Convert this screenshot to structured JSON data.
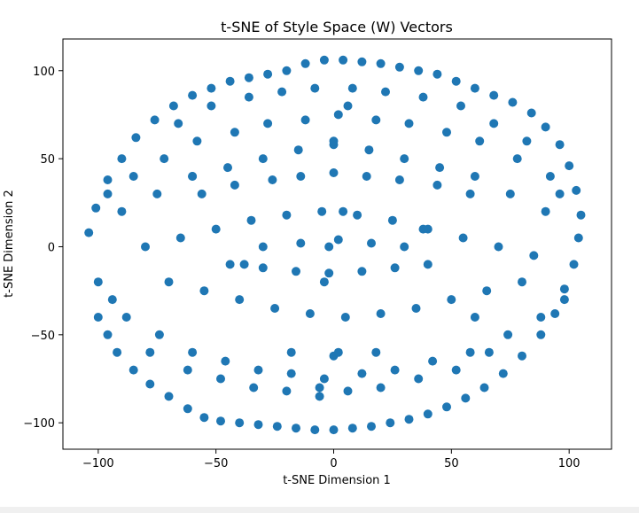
{
  "chart_data": {
    "type": "scatter",
    "title": "t-SNE of Style Space (W) Vectors",
    "xlabel": "t-SNE Dimension 1",
    "ylabel": "t-SNE Dimension 2",
    "xlim": [
      -115,
      118
    ],
    "ylim": [
      -115,
      118
    ],
    "xticks": [
      -100,
      -50,
      0,
      50,
      100
    ],
    "yticks": [
      -100,
      -50,
      0,
      50,
      100
    ],
    "xtick_labels": [
      "−100",
      "−50",
      "0",
      "50",
      "100"
    ],
    "ytick_labels": [
      "−100",
      "−50",
      "0",
      "50",
      "100"
    ],
    "marker_color": "#1f77b4",
    "grid": false,
    "legend": false,
    "series": [
      {
        "x": [
          -104,
          -100,
          -100,
          -96,
          -92,
          -85,
          -78,
          -70,
          -62,
          -55,
          -48,
          -40,
          -32,
          -24,
          -16,
          -8,
          0,
          8,
          16,
          24,
          32,
          40,
          48,
          56,
          64,
          72,
          80,
          88,
          94,
          98,
          102,
          104,
          105,
          103,
          100,
          96,
          90,
          84,
          76,
          68,
          60,
          52,
          44,
          36,
          28,
          20,
          12,
          4,
          -4,
          -12,
          -20,
          -28,
          -36,
          -44,
          -52,
          -60,
          -68,
          -76,
          -84,
          -90,
          -96,
          -101,
          -90,
          -75,
          -60,
          -45,
          -30,
          -15,
          0,
          15,
          30,
          45,
          60,
          75,
          90,
          -80,
          -65,
          -50,
          -35,
          -20,
          -5,
          10,
          25,
          40,
          55,
          70,
          85,
          -70,
          -55,
          -40,
          -25,
          -10,
          5,
          20,
          35,
          50,
          65,
          80,
          -85,
          -72,
          -58,
          -42,
          -28,
          -12,
          2,
          18,
          32,
          48,
          62,
          78,
          92,
          -88,
          -74,
          -60,
          -46,
          -32,
          -18,
          -4,
          12,
          26,
          42,
          58,
          74,
          88,
          -66,
          -52,
          -36,
          -22,
          -8,
          8,
          22,
          38,
          54,
          68,
          82,
          -78,
          -62,
          -48,
          -34,
          -20,
          -6,
          6,
          20,
          36,
          52,
          66,
          -56,
          -42,
          -26,
          -14,
          0,
          14,
          28,
          44,
          58,
          -44,
          -30,
          -16,
          -2,
          12,
          26,
          40,
          -30,
          -14,
          2,
          16,
          30,
          -18,
          0,
          18,
          -96,
          -94,
          96,
          98,
          0,
          2,
          -2,
          4,
          -4,
          6,
          -6,
          38,
          -38,
          60,
          -60
        ],
        "y": [
          8,
          -20,
          -40,
          -50,
          -60,
          -70,
          -78,
          -85,
          -92,
          -97,
          -99,
          -100,
          -101,
          -102,
          -103,
          -104,
          -104,
          -103,
          -102,
          -100,
          -98,
          -95,
          -91,
          -86,
          -80,
          -72,
          -62,
          -50,
          -38,
          -24,
          -10,
          5,
          18,
          32,
          46,
          58,
          68,
          76,
          82,
          86,
          90,
          94,
          98,
          100,
          102,
          104,
          105,
          106,
          106,
          104,
          100,
          98,
          96,
          94,
          90,
          86,
          80,
          72,
          62,
          50,
          38,
          22,
          20,
          30,
          40,
          45,
          50,
          55,
          58,
          55,
          50,
          45,
          40,
          30,
          20,
          0,
          5,
          10,
          15,
          18,
          20,
          18,
          15,
          10,
          5,
          0,
          -5,
          -20,
          -25,
          -30,
          -35,
          -38,
          -40,
          -38,
          -35,
          -30,
          -25,
          -20,
          40,
          50,
          60,
          65,
          70,
          72,
          75,
          72,
          70,
          65,
          60,
          50,
          40,
          -40,
          -50,
          -60,
          -65,
          -70,
          -72,
          -75,
          -72,
          -70,
          -65,
          -60,
          -50,
          -40,
          70,
          80,
          85,
          88,
          90,
          90,
          88,
          85,
          80,
          70,
          60,
          -60,
          -70,
          -75,
          -80,
          -82,
          -85,
          -82,
          -80,
          -75,
          -70,
          -60,
          30,
          35,
          38,
          40,
          42,
          40,
          38,
          35,
          30,
          -10,
          -12,
          -14,
          -15,
          -14,
          -12,
          -10,
          0,
          2,
          4,
          2,
          0,
          -60,
          -62,
          -60,
          30,
          -30,
          30,
          -30,
          60,
          -60,
          0,
          20,
          -20,
          80,
          -80,
          10,
          -10,
          -40,
          40
        ]
      }
    ]
  }
}
